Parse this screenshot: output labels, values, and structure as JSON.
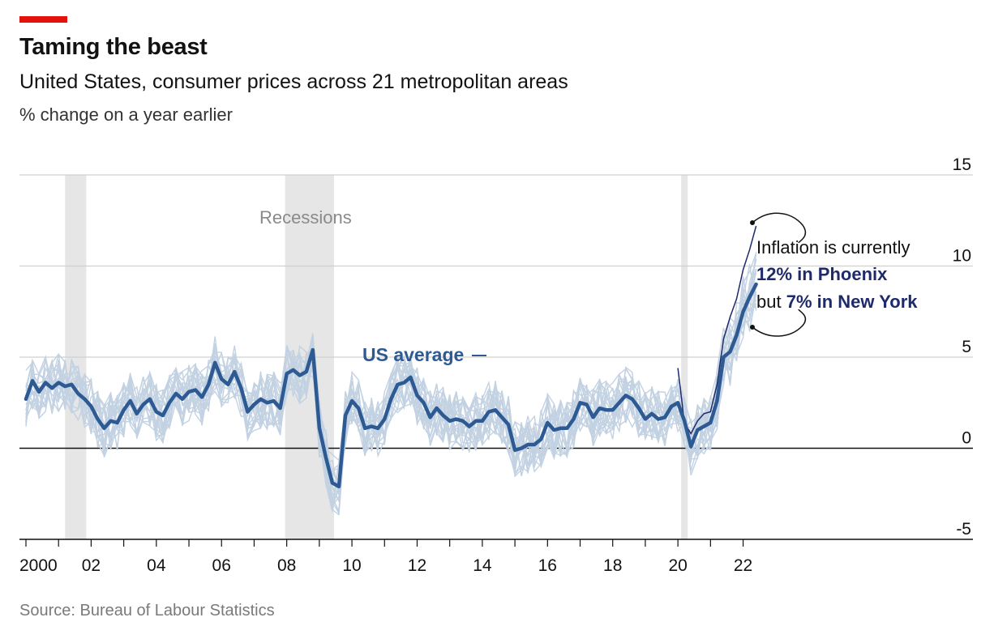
{
  "header": {
    "title": "Taming the beast",
    "subtitle": "United States, consumer prices across 21 metropolitan areas",
    "units": "% change on a year earlier"
  },
  "footer": {
    "source": "Source: Bureau of Labour Statistics"
  },
  "annotations": {
    "recessions": "Recessions",
    "us_average": "US average",
    "callout_line1": "Inflation is currently",
    "callout_line2_strong": "12% in Phoenix",
    "callout_line3_prefix": "but ",
    "callout_line3_strong": "7% in New York"
  },
  "colors": {
    "brand_red": "#e3120b",
    "us_average": "#2e5a94",
    "metro_lines": "#c3d2e2",
    "highlight_metro": "#1f2a6b",
    "recession_shading": "#e6e6e6",
    "gridline": "#d0d0d0"
  },
  "chart_data": {
    "type": "line",
    "title": "Taming the beast",
    "subtitle": "United States, consumer prices across 21 metropolitan areas",
    "ylabel": "% change on a year earlier",
    "ylim": [
      -5,
      15
    ],
    "yticks": [
      15,
      10,
      5,
      0,
      -5
    ],
    "xlim": [
      2000,
      2029
    ],
    "xticks": [
      {
        "value": 2000,
        "label": "2000"
      },
      {
        "value": 2002,
        "label": "02"
      },
      {
        "value": 2004,
        "label": "04"
      },
      {
        "value": 2006,
        "label": "06"
      },
      {
        "value": 2008,
        "label": "08"
      },
      {
        "value": 2010,
        "label": "10"
      },
      {
        "value": 2012,
        "label": "12"
      },
      {
        "value": 2014,
        "label": "14"
      },
      {
        "value": 2016,
        "label": "16"
      },
      {
        "value": 2018,
        "label": "18"
      },
      {
        "value": 2020,
        "label": "20"
      },
      {
        "value": 2022,
        "label": "22"
      }
    ],
    "grid": true,
    "recessions": [
      [
        2001.2,
        2001.85
      ],
      [
        2007.95,
        2009.45
      ],
      [
        2020.1,
        2020.3
      ]
    ],
    "us_average": {
      "name": "US average",
      "points": [
        [
          2000.0,
          2.7
        ],
        [
          2000.2,
          3.7
        ],
        [
          2000.4,
          3.1
        ],
        [
          2000.6,
          3.6
        ],
        [
          2000.8,
          3.3
        ],
        [
          2001.0,
          3.6
        ],
        [
          2001.2,
          3.4
        ],
        [
          2001.4,
          3.5
        ],
        [
          2001.6,
          3.0
        ],
        [
          2001.8,
          2.7
        ],
        [
          2002.0,
          2.3
        ],
        [
          2002.2,
          1.6
        ],
        [
          2002.4,
          1.1
        ],
        [
          2002.6,
          1.5
        ],
        [
          2002.8,
          1.4
        ],
        [
          2003.0,
          2.1
        ],
        [
          2003.2,
          2.6
        ],
        [
          2003.4,
          1.9
        ],
        [
          2003.6,
          2.4
        ],
        [
          2003.8,
          2.7
        ],
        [
          2004.0,
          2.0
        ],
        [
          2004.2,
          1.8
        ],
        [
          2004.4,
          2.5
        ],
        [
          2004.6,
          3.0
        ],
        [
          2004.8,
          2.7
        ],
        [
          2005.0,
          3.1
        ],
        [
          2005.2,
          3.2
        ],
        [
          2005.4,
          2.8
        ],
        [
          2005.6,
          3.5
        ],
        [
          2005.8,
          4.7
        ],
        [
          2006.0,
          3.8
        ],
        [
          2006.2,
          3.5
        ],
        [
          2006.4,
          4.2
        ],
        [
          2006.6,
          3.3
        ],
        [
          2006.8,
          2.0
        ],
        [
          2007.0,
          2.4
        ],
        [
          2007.2,
          2.7
        ],
        [
          2007.4,
          2.5
        ],
        [
          2007.6,
          2.6
        ],
        [
          2007.8,
          2.2
        ],
        [
          2008.0,
          4.1
        ],
        [
          2008.2,
          4.3
        ],
        [
          2008.4,
          4.0
        ],
        [
          2008.6,
          4.2
        ],
        [
          2008.8,
          5.4
        ],
        [
          2009.0,
          1.1
        ],
        [
          2009.2,
          -0.5
        ],
        [
          2009.4,
          -1.9
        ],
        [
          2009.6,
          -2.1
        ],
        [
          2009.8,
          1.8
        ],
        [
          2010.0,
          2.6
        ],
        [
          2010.2,
          2.2
        ],
        [
          2010.4,
          1.1
        ],
        [
          2010.6,
          1.2
        ],
        [
          2010.8,
          1.1
        ],
        [
          2011.0,
          1.6
        ],
        [
          2011.2,
          2.7
        ],
        [
          2011.4,
          3.5
        ],
        [
          2011.6,
          3.6
        ],
        [
          2011.8,
          3.9
        ],
        [
          2012.0,
          2.9
        ],
        [
          2012.2,
          2.5
        ],
        [
          2012.4,
          1.7
        ],
        [
          2012.6,
          2.2
        ],
        [
          2012.8,
          1.8
        ],
        [
          2013.0,
          1.5
        ],
        [
          2013.2,
          1.6
        ],
        [
          2013.4,
          1.5
        ],
        [
          2013.6,
          1.2
        ],
        [
          2013.8,
          1.5
        ],
        [
          2014.0,
          1.5
        ],
        [
          2014.2,
          2.0
        ],
        [
          2014.4,
          2.1
        ],
        [
          2014.6,
          1.7
        ],
        [
          2014.8,
          1.3
        ],
        [
          2015.0,
          -0.1
        ],
        [
          2015.2,
          0.0
        ],
        [
          2015.4,
          0.2
        ],
        [
          2015.6,
          0.2
        ],
        [
          2015.8,
          0.5
        ],
        [
          2016.0,
          1.4
        ],
        [
          2016.2,
          1.0
        ],
        [
          2016.4,
          1.1
        ],
        [
          2016.6,
          1.1
        ],
        [
          2016.8,
          1.6
        ],
        [
          2017.0,
          2.5
        ],
        [
          2017.2,
          2.4
        ],
        [
          2017.4,
          1.7
        ],
        [
          2017.6,
          2.2
        ],
        [
          2017.8,
          2.1
        ],
        [
          2018.0,
          2.1
        ],
        [
          2018.2,
          2.5
        ],
        [
          2018.4,
          2.9
        ],
        [
          2018.6,
          2.7
        ],
        [
          2018.8,
          2.2
        ],
        [
          2019.0,
          1.6
        ],
        [
          2019.2,
          1.9
        ],
        [
          2019.4,
          1.6
        ],
        [
          2019.6,
          1.7
        ],
        [
          2019.8,
          2.3
        ],
        [
          2020.0,
          2.5
        ],
        [
          2020.2,
          1.5
        ],
        [
          2020.4,
          0.1
        ],
        [
          2020.6,
          1.0
        ],
        [
          2020.8,
          1.2
        ],
        [
          2021.0,
          1.4
        ],
        [
          2021.2,
          2.6
        ],
        [
          2021.4,
          5.0
        ],
        [
          2021.6,
          5.3
        ],
        [
          2021.8,
          6.2
        ],
        [
          2022.0,
          7.5
        ],
        [
          2022.2,
          8.3
        ],
        [
          2022.4,
          9.0
        ]
      ]
    },
    "highlighted_metro": {
      "points": [
        [
          2020.0,
          4.4
        ],
        [
          2020.2,
          1.4
        ],
        [
          2020.4,
          0.8
        ],
        [
          2020.6,
          1.5
        ],
        [
          2020.8,
          1.9
        ],
        [
          2021.0,
          2.0
        ],
        [
          2021.2,
          3.5
        ],
        [
          2021.4,
          6.0
        ],
        [
          2021.6,
          7.2
        ],
        [
          2021.8,
          8.2
        ],
        [
          2022.0,
          9.8
        ],
        [
          2022.2,
          10.9
        ],
        [
          2022.4,
          12.2
        ]
      ]
    },
    "metro_series_note": "21 metropolitan area series shown as thin light lines"
  }
}
